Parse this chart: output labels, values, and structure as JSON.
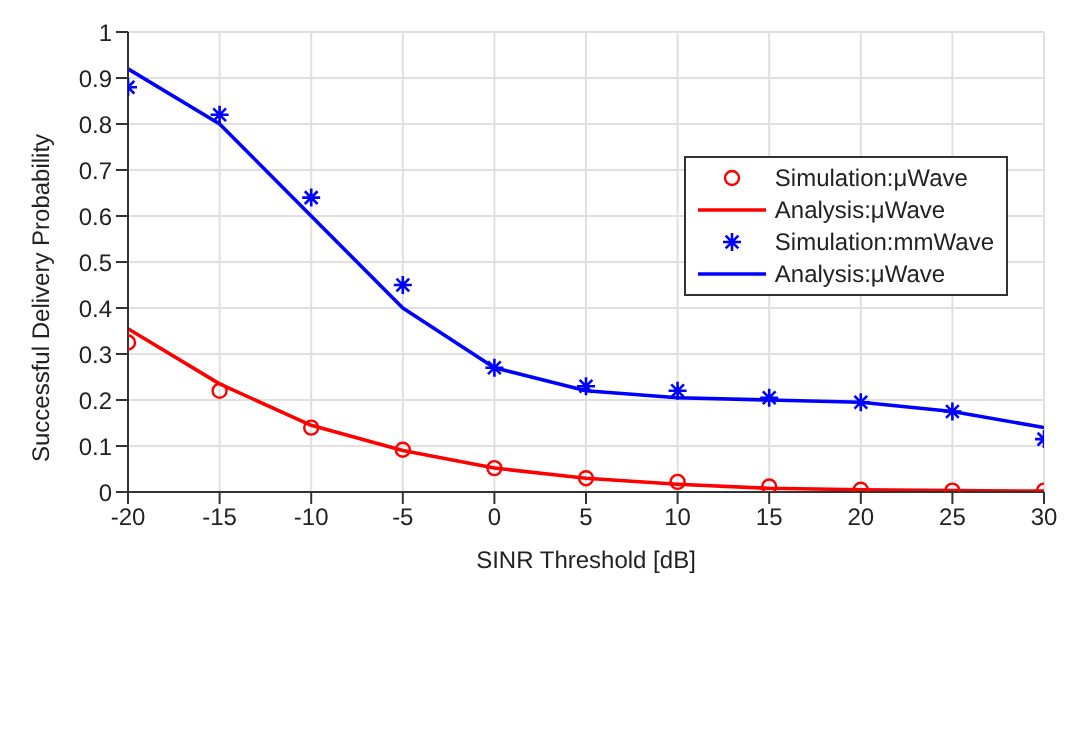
{
  "chart_data": {
    "type": "line",
    "xlabel": "SINR Threshold [dB]",
    "ylabel": "Successful Delivery Probability",
    "x": [
      -20,
      -15,
      -10,
      -5,
      0,
      5,
      10,
      15,
      20,
      25,
      30
    ],
    "series": [
      {
        "name": "Simulation:μWave",
        "type": "scatter",
        "marker": "circle",
        "color": "#ff0000",
        "values": [
          0.325,
          0.22,
          0.14,
          0.092,
          0.052,
          0.03,
          0.022,
          0.012,
          0.005,
          0.003,
          0.003
        ]
      },
      {
        "name": "Analysis:μWave",
        "marker": "none",
        "color": "#ff0000",
        "values": [
          0.355,
          0.235,
          0.145,
          0.09,
          0.052,
          0.03,
          0.017,
          0.008,
          0.005,
          0.003,
          0.002
        ]
      },
      {
        "name": "Simulation:mmWave",
        "type": "scatter",
        "marker": "cross",
        "color": "#0000ff",
        "values": [
          0.88,
          0.82,
          0.64,
          0.45,
          0.27,
          0.23,
          0.22,
          0.205,
          0.195,
          0.175,
          0.115
        ]
      },
      {
        "name": "Analysis:μWave",
        "marker": "none",
        "color": "#0000ff",
        "values": [
          0.92,
          0.8,
          0.6,
          0.4,
          0.27,
          0.22,
          0.205,
          0.2,
          0.195,
          0.175,
          0.14
        ]
      }
    ],
    "xlim": [
      -20,
      30
    ],
    "xticks": [
      -20,
      -15,
      -10,
      -5,
      0,
      5,
      10,
      15,
      20,
      25,
      30
    ],
    "ylim": [
      0,
      1
    ],
    "yticks": [
      0,
      0.1,
      0.2,
      0.3,
      0.4,
      0.5,
      0.6,
      0.7,
      0.8,
      0.9,
      1
    ],
    "grid": true,
    "legend": "top right"
  }
}
